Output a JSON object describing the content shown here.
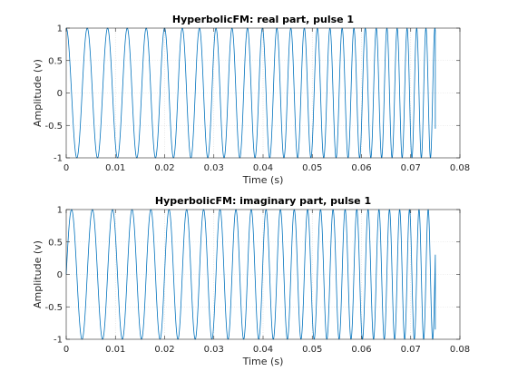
{
  "figure_name": "hyperbolicfm-pulse-figure",
  "colors": {
    "background": "#ffffff",
    "axes": "#262626",
    "grid": "#d9d9d9",
    "line": "#0072bd"
  },
  "chart_data": [
    {
      "type": "line",
      "title": "HyperbolicFM: real part, pulse 1",
      "xlabel": "Time (s)",
      "ylabel": "Amplitude (v)",
      "xlim": [
        0,
        0.08
      ],
      "ylim": [
        -1,
        1
      ],
      "xticks": [
        0,
        0.01,
        0.02,
        0.03,
        0.04,
        0.05,
        0.06,
        0.07,
        0.08
      ],
      "yticks": [
        -1,
        -0.5,
        0,
        0.5,
        1
      ],
      "xtick_labels": [
        "0",
        "0.01",
        "0.02",
        "0.03",
        "0.04",
        "0.05",
        "0.06",
        "0.07",
        "0.08"
      ],
      "ytick_labels": [
        "-1",
        "-0.5",
        "0",
        "0.5",
        "1"
      ],
      "grid": true,
      "series": [
        {
          "component": "real",
          "t_start": 0,
          "t_end": 0.075,
          "amplitude": 1,
          "f_start_hz": 230,
          "f_end_hz": 560,
          "sweep": "hyperbolic",
          "end_value": -0.55
        }
      ]
    },
    {
      "type": "line",
      "title": "HyperbolicFM: imaginary part, pulse 1",
      "xlabel": "Time (s)",
      "ylabel": "Amplitude (v)",
      "xlim": [
        0,
        0.08
      ],
      "ylim": [
        -1,
        1
      ],
      "xticks": [
        0,
        0.01,
        0.02,
        0.03,
        0.04,
        0.05,
        0.06,
        0.07,
        0.08
      ],
      "yticks": [
        -1,
        -0.5,
        0,
        0.5,
        1
      ],
      "xtick_labels": [
        "0",
        "0.01",
        "0.02",
        "0.03",
        "0.04",
        "0.05",
        "0.06",
        "0.07",
        "0.08"
      ],
      "ytick_labels": [
        "-1",
        "-0.5",
        "0",
        "0.5",
        "1"
      ],
      "grid": true,
      "series": [
        {
          "component": "imaginary",
          "t_start": 0,
          "t_end": 0.075,
          "amplitude": 1,
          "f_start_hz": 230,
          "f_end_hz": 560,
          "sweep": "hyperbolic",
          "end_value": -0.85
        }
      ]
    }
  ]
}
